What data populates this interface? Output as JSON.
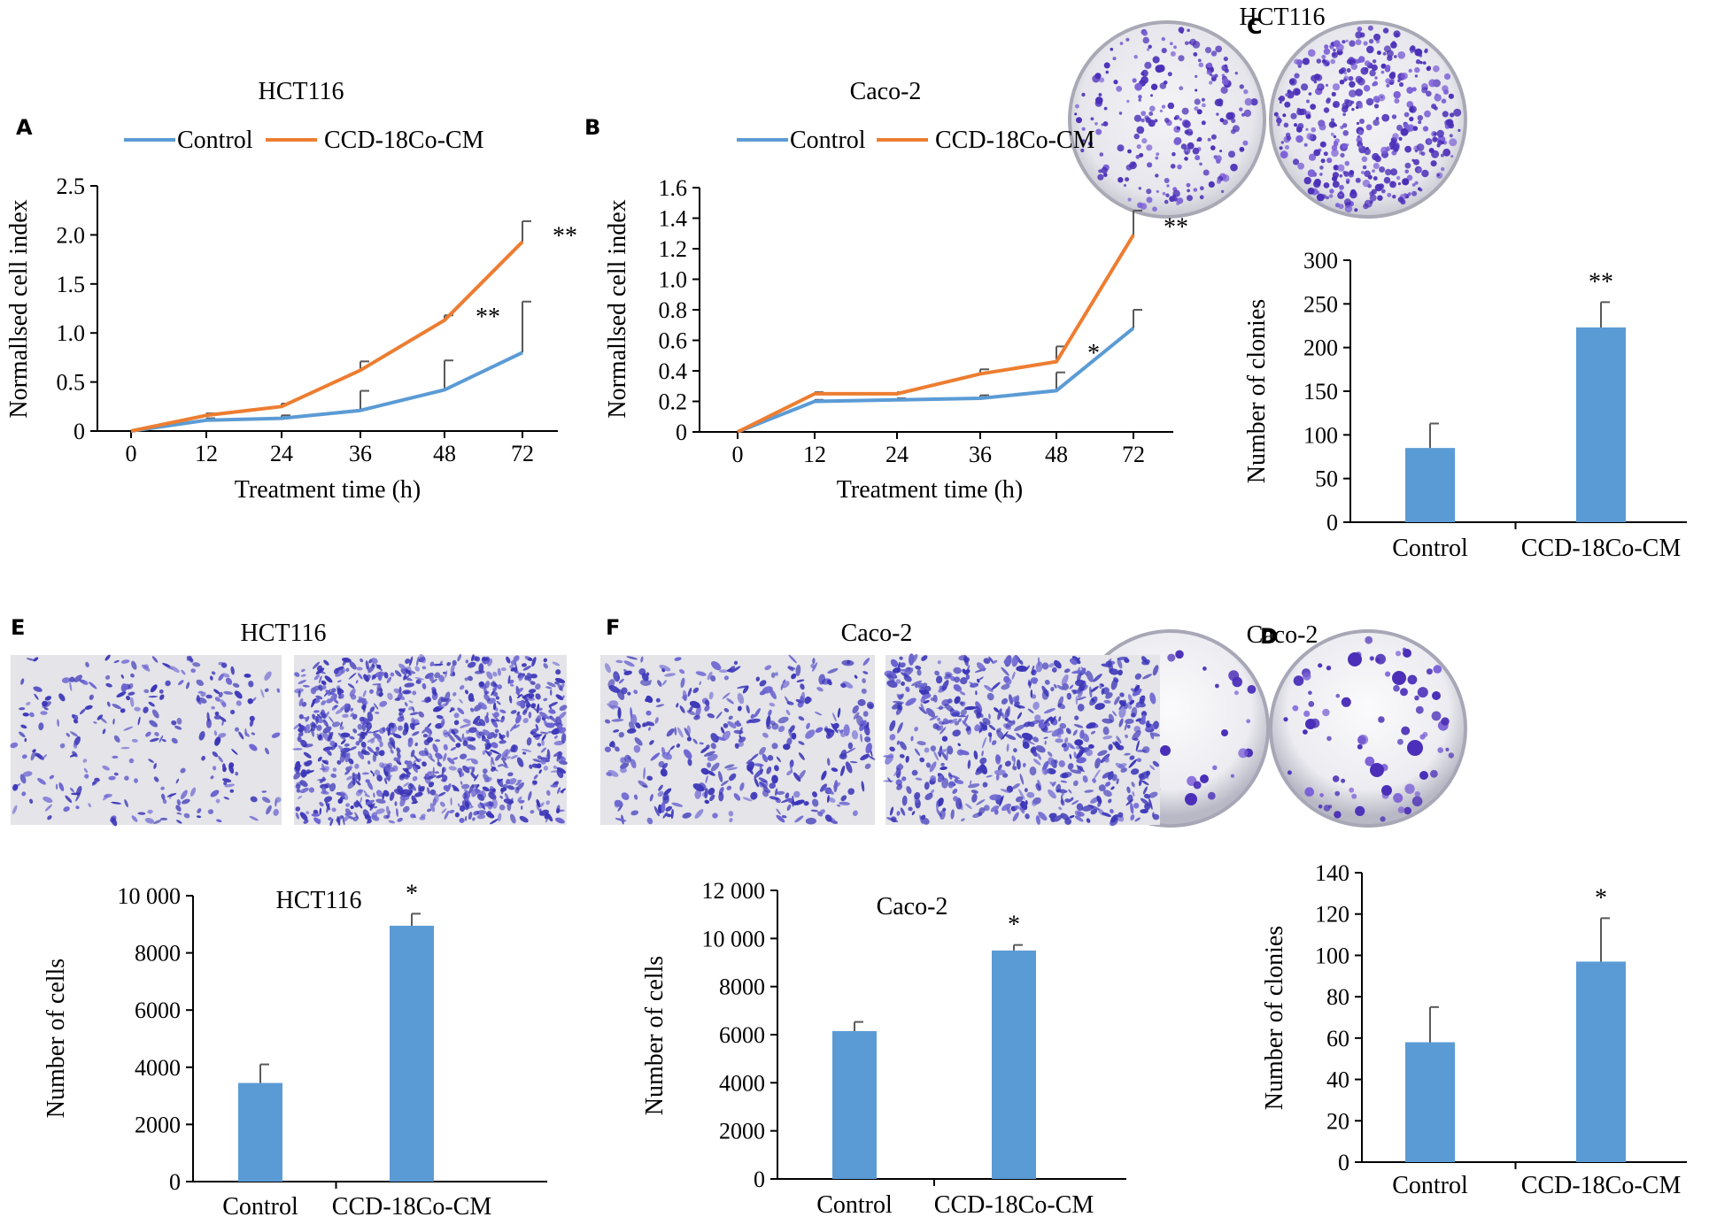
{
  "colors": {
    "control": "#5B9BD5",
    "treated": "#ED7D31",
    "bar": "#5B9BD5",
    "axis": "#000000",
    "error": "#595959",
    "stain": "#4B2FB8",
    "stain_light": "#7B5FD6",
    "plate_bg": "#E9E9EE"
  },
  "panels": {
    "A": {
      "letter": "A"
    },
    "B": {
      "letter": "B"
    },
    "C": {
      "letter": "C",
      "title": "HCT116"
    },
    "D": {
      "letter": "D",
      "title": "Caco-2"
    },
    "E": {
      "letter": "E",
      "title": "HCT116"
    },
    "F": {
      "letter": "F",
      "title": "Caco-2"
    }
  },
  "chart_data": [
    {
      "id": "A",
      "type": "line",
      "title": "HCT116",
      "xlabel": "Treatment time (h)",
      "ylabel": "Normallsed cell index",
      "x": [
        "0",
        "12",
        "24",
        "36",
        "48",
        "72"
      ],
      "ylim": [
        0,
        2.5
      ],
      "yticks": [
        "0",
        "0.5",
        "1.0",
        "1.5",
        "2.0",
        "2.5"
      ],
      "series": [
        {
          "name": "Control",
          "values": [
            0,
            0.11,
            0.13,
            0.21,
            0.42,
            0.8
          ],
          "error": [
            0,
            0.02,
            0.03,
            0.2,
            0.3,
            0.52
          ]
        },
        {
          "name": "CCD-18Co-CM",
          "values": [
            0,
            0.16,
            0.25,
            0.62,
            1.13,
            1.93
          ],
          "error": [
            0,
            0.02,
            0.03,
            0.09,
            0.05,
            0.21
          ]
        }
      ],
      "annotations": [
        {
          "x": "48",
          "text": "**"
        },
        {
          "x": "72",
          "text": "**"
        }
      ]
    },
    {
      "id": "B",
      "type": "line",
      "title": "Caco-2",
      "xlabel": "Treatment time (h)",
      "ylabel": "Normallsed cell index",
      "x": [
        "0",
        "12",
        "24",
        "36",
        "48",
        "72"
      ],
      "ylim": [
        0,
        1.6
      ],
      "yticks": [
        "0",
        "0.2",
        "0.4",
        "0.6",
        "0.8",
        "1.0",
        "1.2",
        "1.4",
        "1.6"
      ],
      "series": [
        {
          "name": "Control",
          "values": [
            0,
            0.2,
            0.21,
            0.22,
            0.27,
            0.68
          ],
          "error": [
            0,
            0.01,
            0.01,
            0.02,
            0.12,
            0.12
          ]
        },
        {
          "name": "CCD-18Co-CM",
          "values": [
            0,
            0.25,
            0.25,
            0.38,
            0.46,
            1.29
          ],
          "error": [
            0,
            0.01,
            0.01,
            0.03,
            0.1,
            0.16
          ]
        }
      ],
      "annotations": [
        {
          "x": "48",
          "text": "*"
        },
        {
          "x": "72",
          "text": "**"
        }
      ]
    },
    {
      "id": "C",
      "type": "bar",
      "ylabel": "Number of clonies",
      "categories": [
        "Control",
        "CCD-18Co-CM"
      ],
      "values": [
        85,
        223
      ],
      "error": [
        28,
        29
      ],
      "ylim": [
        0,
        300
      ],
      "yticks": [
        "0",
        "50",
        "100",
        "150",
        "200",
        "250",
        "300"
      ],
      "annotations": [
        {
          "category": "CCD-18Co-CM",
          "text": "**"
        }
      ]
    },
    {
      "id": "D",
      "type": "bar",
      "ylabel": "Number of clonies",
      "categories": [
        "Control",
        "CCD-18Co-CM"
      ],
      "values": [
        58,
        97
      ],
      "error": [
        17,
        21
      ],
      "ylim": [
        0,
        140
      ],
      "yticks": [
        "0",
        "20",
        "40",
        "60",
        "80",
        "100",
        "120",
        "140"
      ],
      "annotations": [
        {
          "category": "CCD-18Co-CM",
          "text": "*"
        }
      ]
    },
    {
      "id": "E",
      "type": "bar",
      "title": "HCT116",
      "ylabel": "Number of cells",
      "categories": [
        "Control",
        "CCD-18Co-CM"
      ],
      "values": [
        3450,
        8950
      ],
      "error": [
        650,
        420
      ],
      "ylim": [
        0,
        10000
      ],
      "yticks": [
        "0",
        "2000",
        "4000",
        "6000",
        "8000",
        "10 000"
      ],
      "annotations": [
        {
          "category": "CCD-18Co-CM",
          "text": "*"
        }
      ]
    },
    {
      "id": "F",
      "type": "bar",
      "title": "Caco-2",
      "ylabel": "Number of cells",
      "categories": [
        "Control",
        "CCD-18Co-CM"
      ],
      "values": [
        6150,
        9500
      ],
      "error": [
        380,
        230
      ],
      "ylim": [
        0,
        12000
      ],
      "yticks": [
        "0",
        "2000",
        "4000",
        "6000",
        "8000",
        "10 000",
        "12 000"
      ],
      "annotations": [
        {
          "category": "CCD-18Co-CM",
          "text": "*"
        }
      ]
    }
  ]
}
